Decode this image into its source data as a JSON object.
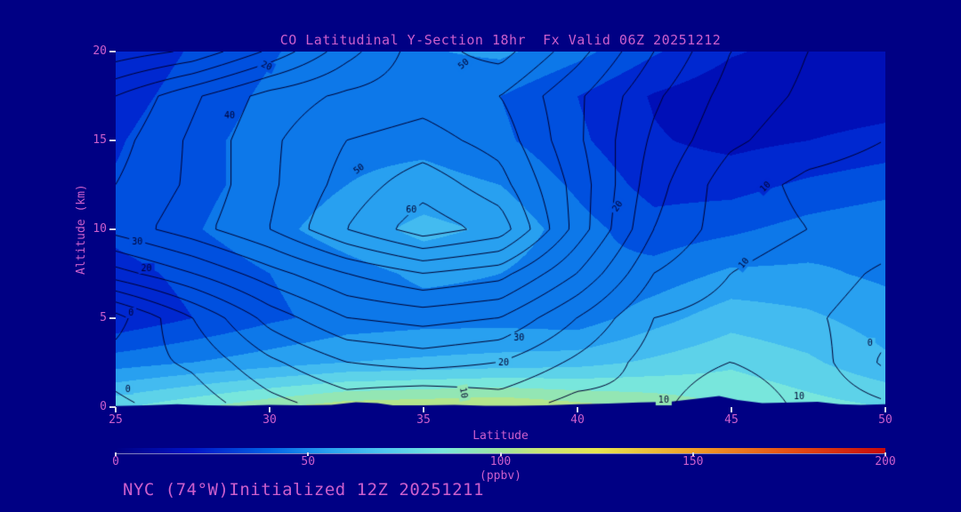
{
  "title": "CO Latitudinal Y-Section 18hr  Fx Valid 06Z 20251212",
  "footer": "NYC (74°W)Initialized 12Z 20251211",
  "colors": {
    "background": "#000084",
    "text_accent": "#CC5FCC",
    "contour_line": "#000030",
    "tick_mark": "#D8D8E8"
  },
  "chart_data": {
    "type": "heatmap",
    "title": "CO Latitudinal Y-Section 18hr  Fx Valid 06Z 20251212",
    "xlabel": "Latitude",
    "ylabel": "Altitude (km)",
    "xlim": [
      25,
      50
    ],
    "ylim": [
      0,
      20
    ],
    "x_ticks": [
      25,
      30,
      35,
      40,
      45,
      50
    ],
    "y_ticks": [
      0,
      5,
      10,
      15,
      20
    ],
    "grid": false,
    "lat_points": [
      25,
      27.5,
      30,
      32.5,
      35,
      37.5,
      40,
      42.5,
      45,
      47.5,
      50
    ],
    "alt_points_km": [
      0,
      2.5,
      5,
      7.5,
      10,
      12.5,
      15,
      17.5,
      20
    ],
    "shading_ppbv": [
      [
        78,
        88,
        98,
        106,
        108,
        110,
        104,
        98,
        90,
        84,
        80
      ],
      [
        45,
        50,
        55,
        60,
        62,
        64,
        66,
        72,
        78,
        72,
        62
      ],
      [
        22,
        30,
        38,
        44,
        46,
        46,
        44,
        56,
        66,
        62,
        55
      ],
      [
        26,
        33,
        40,
        46,
        52,
        50,
        42,
        44,
        52,
        52,
        48
      ],
      [
        33,
        39,
        47,
        55,
        63,
        58,
        44,
        34,
        38,
        44,
        48
      ],
      [
        31,
        37,
        44,
        50,
        54,
        50,
        38,
        26,
        26,
        32,
        36
      ],
      [
        29,
        37,
        44,
        47,
        47,
        42,
        32,
        21,
        17,
        20,
        24
      ],
      [
        26,
        34,
        42,
        44,
        44,
        40,
        30,
        19,
        13,
        12,
        14
      ],
      [
        23,
        31,
        39,
        46,
        49,
        52,
        43,
        31,
        21,
        16,
        12
      ]
    ],
    "contour_values": [
      [
        -1,
        2,
        8,
        12,
        9,
        12,
        8,
        9,
        13,
        9,
        6
      ],
      [
        2,
        6,
        14,
        20,
        22,
        20,
        14,
        8,
        10,
        8,
        -1
      ],
      [
        -2,
        10,
        22,
        30,
        32,
        30,
        20,
        10,
        8,
        6,
        2
      ],
      [
        18,
        25,
        33,
        40,
        45,
        42,
        30,
        15,
        10,
        8,
        4
      ],
      [
        32,
        38,
        45,
        55,
        63,
        58,
        38,
        20,
        12,
        10,
        8
      ],
      [
        30,
        36,
        44,
        52,
        58,
        52,
        38,
        22,
        12,
        9,
        8
      ],
      [
        28,
        36,
        44,
        50,
        52,
        48,
        36,
        24,
        16,
        12,
        10
      ],
      [
        25,
        34,
        42,
        46,
        48,
        45,
        36,
        26,
        18,
        14,
        11
      ],
      [
        12,
        16,
        26,
        38,
        48,
        52,
        42,
        30,
        20,
        15,
        12
      ]
    ],
    "contour_levels": {
      "min": 0,
      "max": 60,
      "interval": 5
    },
    "contour_labels": [
      {
        "value": 20,
        "lat": 29.9,
        "alt": 19.2,
        "rot": 25
      },
      {
        "value": 50,
        "lat": 36.3,
        "alt": 19.3,
        "rot": -40
      },
      {
        "value": 40,
        "lat": 28.7,
        "alt": 16.4,
        "rot": 0
      },
      {
        "value": 50,
        "lat": 32.9,
        "alt": 13.4,
        "rot": -35
      },
      {
        "value": 60,
        "lat": 34.6,
        "alt": 11.1,
        "rot": 0
      },
      {
        "value": 30,
        "lat": 25.7,
        "alt": 9.3,
        "rot": 0
      },
      {
        "value": 20,
        "lat": 26.0,
        "alt": 7.8,
        "rot": 0
      },
      {
        "value": 0,
        "lat": 25.5,
        "alt": 5.3,
        "rot": 0
      },
      {
        "value": 30,
        "lat": 38.1,
        "alt": 3.9,
        "rot": 0
      },
      {
        "value": 20,
        "lat": 37.6,
        "alt": 2.5,
        "rot": 0
      },
      {
        "value": 0,
        "lat": 25.4,
        "alt": 1.0,
        "rot": 0
      },
      {
        "value": 10,
        "lat": 36.3,
        "alt": 0.8,
        "rot": 80
      },
      {
        "value": 10,
        "lat": 42.8,
        "alt": 0.4,
        "rot": 0
      },
      {
        "value": 10,
        "lat": 47.2,
        "alt": 0.6,
        "rot": 0
      },
      {
        "value": 20,
        "lat": 41.3,
        "alt": 11.3,
        "rot": -55
      },
      {
        "value": 10,
        "lat": 45.4,
        "alt": 8.1,
        "rot": -50
      },
      {
        "value": 10,
        "lat": 46.1,
        "alt": 12.4,
        "rot": -45
      },
      {
        "value": 0,
        "lat": 49.5,
        "alt": 3.6,
        "rot": 0
      }
    ],
    "terrain_lat_alt": [
      [
        25,
        0.06
      ],
      [
        26,
        0.1
      ],
      [
        27,
        0.16
      ],
      [
        28,
        0.1
      ],
      [
        29,
        0.08
      ],
      [
        30,
        0.12
      ],
      [
        31,
        0.1
      ],
      [
        32,
        0.12
      ],
      [
        32.8,
        0.28
      ],
      [
        33.5,
        0.22
      ],
      [
        34,
        0.1
      ],
      [
        35,
        0.1
      ],
      [
        36,
        0.12
      ],
      [
        37,
        0.08
      ],
      [
        38,
        0.08
      ],
      [
        39,
        0.1
      ],
      [
        40,
        0.16
      ],
      [
        41,
        0.2
      ],
      [
        42,
        0.26
      ],
      [
        43,
        0.3
      ],
      [
        44,
        0.5
      ],
      [
        44.6,
        0.62
      ],
      [
        45.2,
        0.4
      ],
      [
        46,
        0.22
      ],
      [
        47,
        0.26
      ],
      [
        47.8,
        0.3
      ],
      [
        48.5,
        0.16
      ],
      [
        49.2,
        0.12
      ],
      [
        50,
        0.16
      ]
    ],
    "colorbar": {
      "min": 0,
      "max": 200,
      "tick_values": [
        0,
        50,
        100,
        150,
        200
      ],
      "units": "(ppbv)",
      "position": "bottom",
      "stops": [
        [
          0,
          "#000084"
        ],
        [
          20,
          "#0014C8"
        ],
        [
          40,
          "#0064E6"
        ],
        [
          55,
          "#28A0F0"
        ],
        [
          70,
          "#50C8F0"
        ],
        [
          85,
          "#78E6DC"
        ],
        [
          100,
          "#A0E6A0"
        ],
        [
          110,
          "#C8E678"
        ],
        [
          125,
          "#E6E650"
        ],
        [
          150,
          "#F0A028"
        ],
        [
          175,
          "#E65014"
        ],
        [
          200,
          "#C80A0A"
        ]
      ]
    }
  }
}
